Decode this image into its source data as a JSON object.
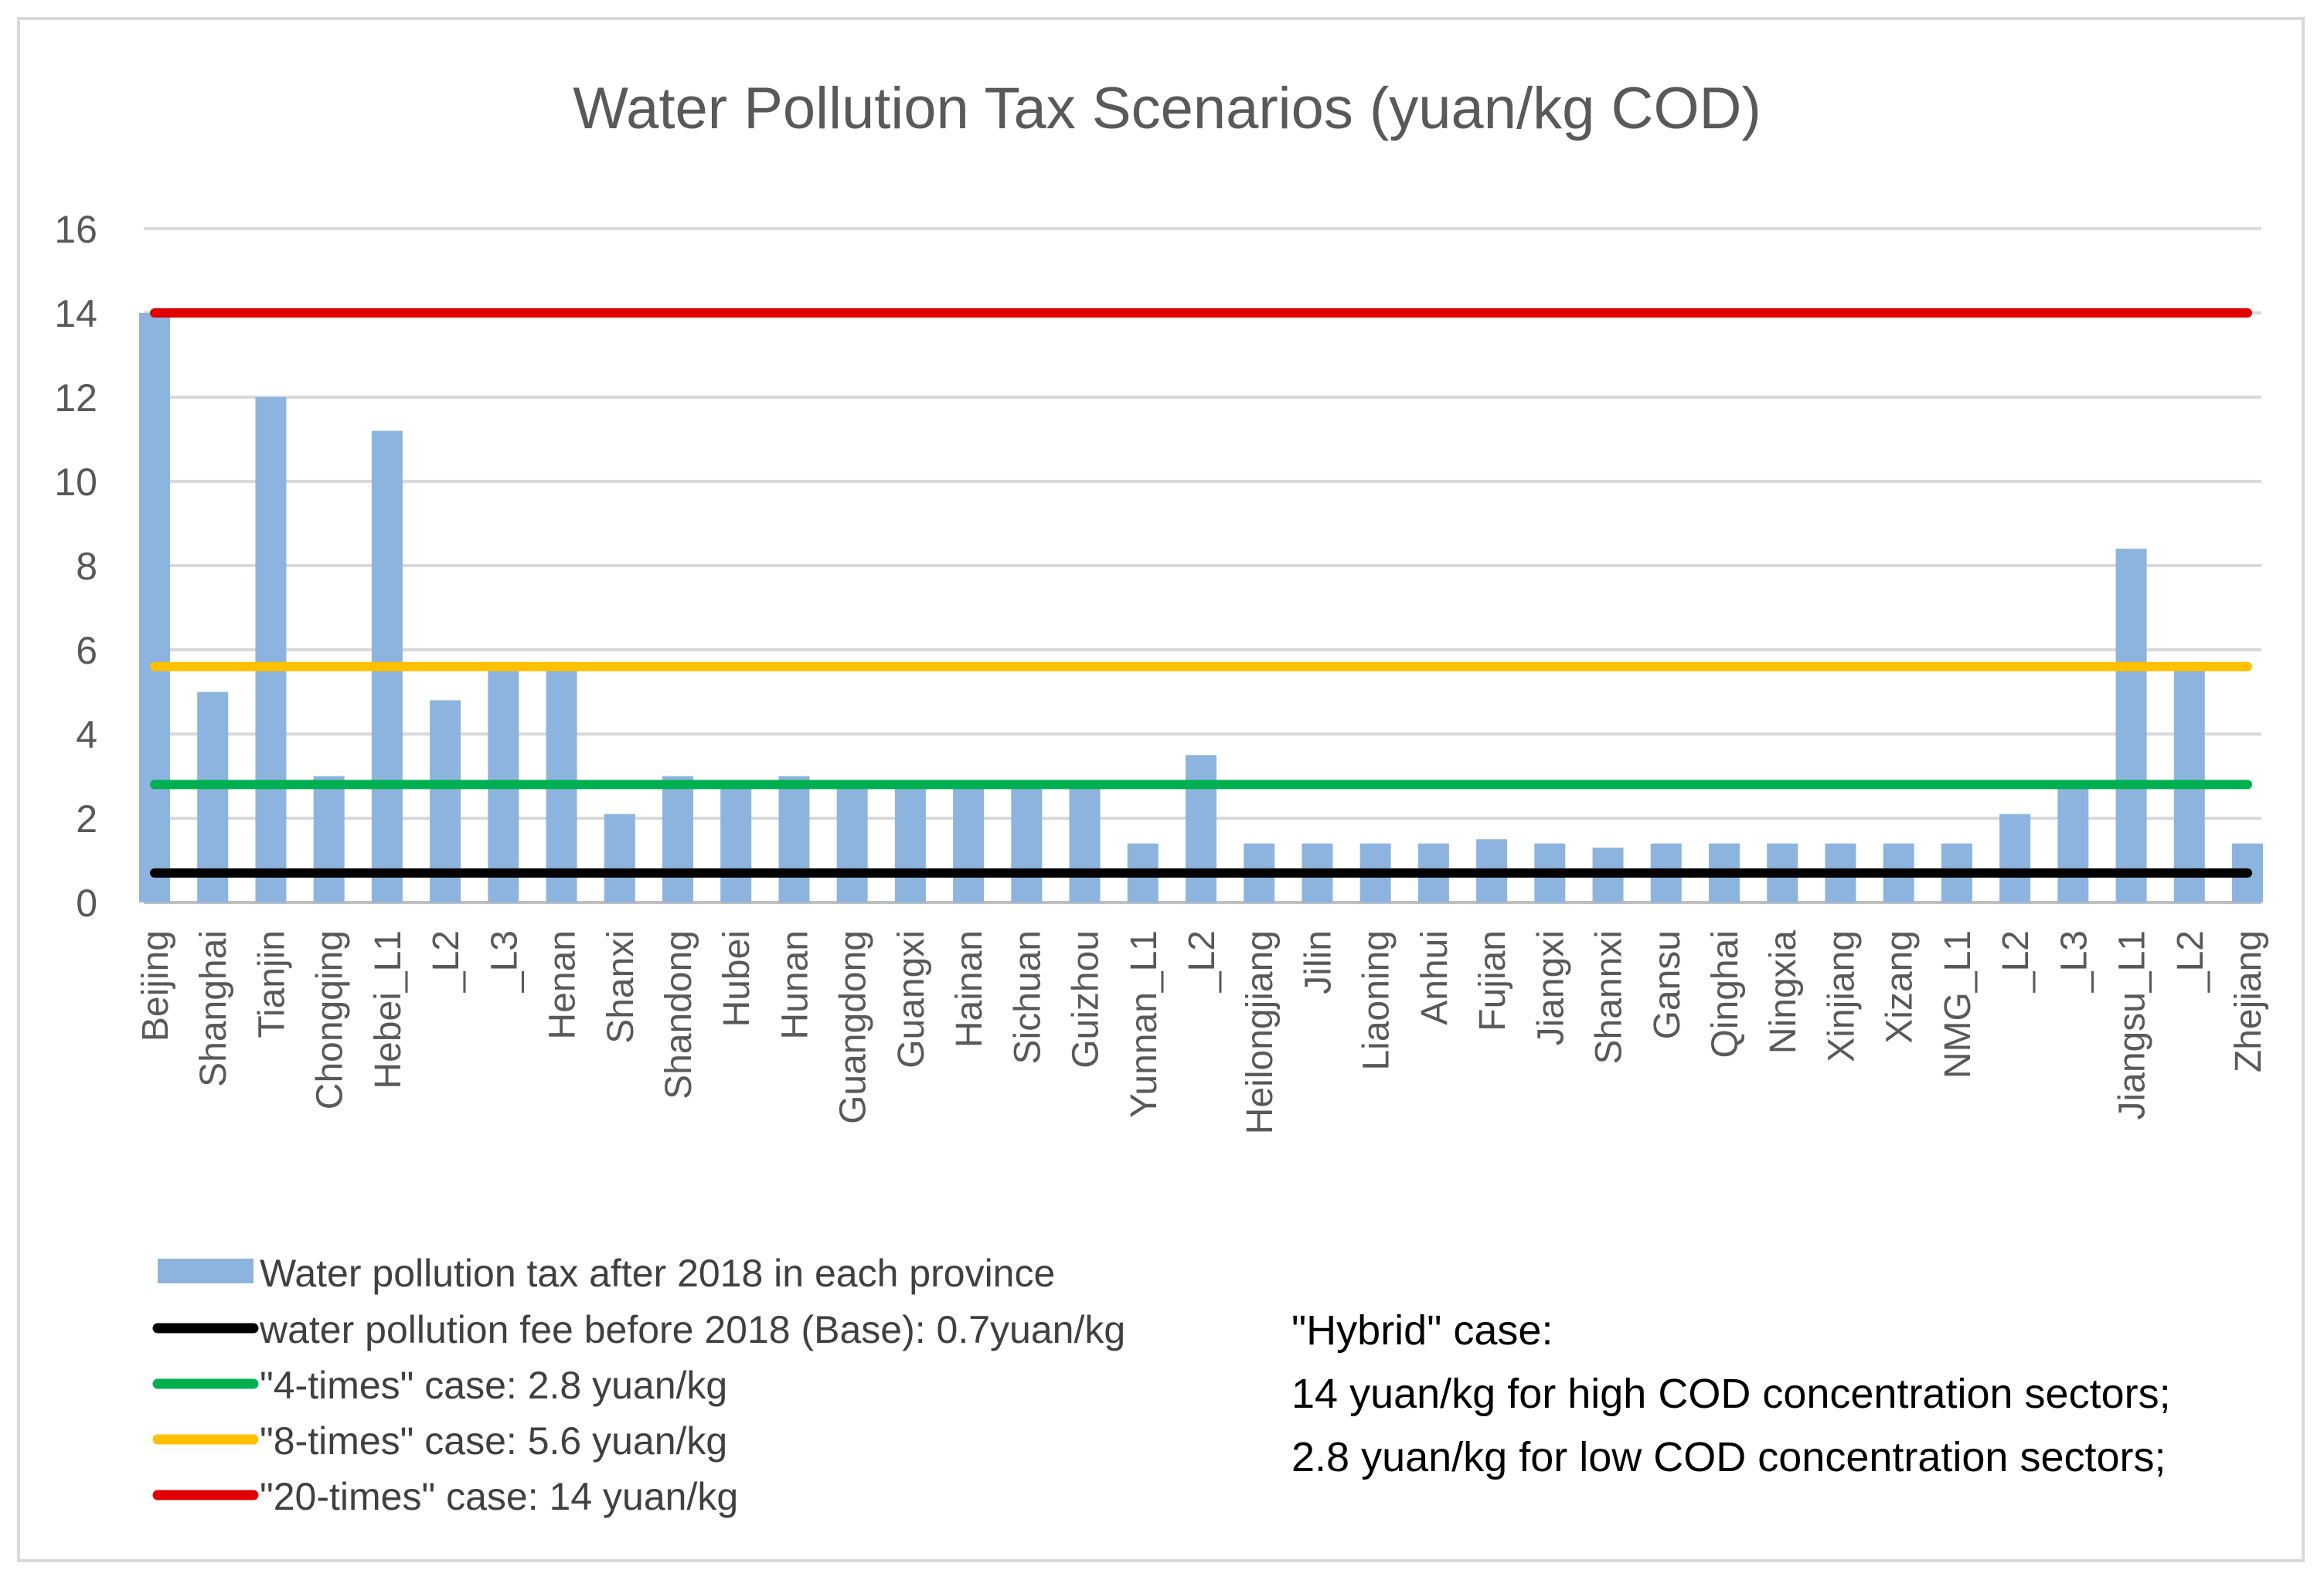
{
  "chart_data": {
    "type": "bar",
    "title": "Water Pollution Tax Scenarios (yuan/kg COD)",
    "xlabel": "",
    "ylabel": "",
    "ylim": [
      0,
      16
    ],
    "yticks": [
      0,
      2,
      4,
      6,
      8,
      10,
      12,
      14,
      16
    ],
    "grid": true,
    "categories": [
      "Beijing",
      "Shanghai",
      "Tianjin",
      "Chongqing",
      "Hebei_L1",
      "_L2",
      "_L3",
      "Henan",
      "Shanxi",
      "Shandong",
      "Hubei",
      "Hunan",
      "Guangdong",
      "Guangxi",
      "Hainan",
      "Sichuan",
      "Guizhou",
      "Yunnan_L1",
      "_L2",
      "Heilongjiang",
      "Jilin",
      "Liaoning",
      "Anhui",
      "Fujian",
      "Jiangxi",
      "Shannxi",
      "Gansu",
      "Qinghai",
      "Ningxia",
      "Xinjiang",
      "Xizang",
      "NMG_L1",
      "_L2",
      "_L3",
      "Jiangsu_L1",
      "_L2",
      "Zhejiang"
    ],
    "series": [
      {
        "name": "Water pollution tax after 2018 in each province",
        "kind": "bar",
        "color": "#8db4de",
        "values": [
          14,
          5,
          12,
          3,
          11.2,
          4.8,
          5.6,
          5.6,
          2.1,
          3,
          2.8,
          3,
          2.8,
          2.8,
          2.8,
          2.8,
          2.8,
          1.4,
          3.5,
          1.4,
          1.4,
          1.4,
          1.4,
          1.5,
          1.4,
          1.3,
          1.4,
          1.4,
          1.4,
          1.4,
          1.4,
          1.4,
          2.1,
          2.8,
          8.4,
          5.6,
          1.4
        ]
      },
      {
        "name": "water pollution fee before 2018 (Base): 0.7yuan/kg",
        "kind": "hline",
        "value": 0.7,
        "color": "#000000"
      },
      {
        "name": "\"4-times\" case: 2.8 yuan/kg",
        "kind": "hline",
        "value": 2.8,
        "color": "#00b050"
      },
      {
        "name": "\"8-times\" case: 5.6 yuan/kg",
        "kind": "hline",
        "value": 5.6,
        "color": "#ffc000"
      },
      {
        "name": "\"20-times\" case: 14 yuan/kg",
        "kind": "hline",
        "value": 14,
        "color": "#e00000"
      }
    ],
    "legend_position": "bottom-left",
    "annotation": {
      "lines": [
        "\"Hybrid\" case:",
        "14 yuan/kg for high COD concentration sectors;",
        "2.8 yuan/kg for low COD concentration sectors;"
      ]
    }
  }
}
